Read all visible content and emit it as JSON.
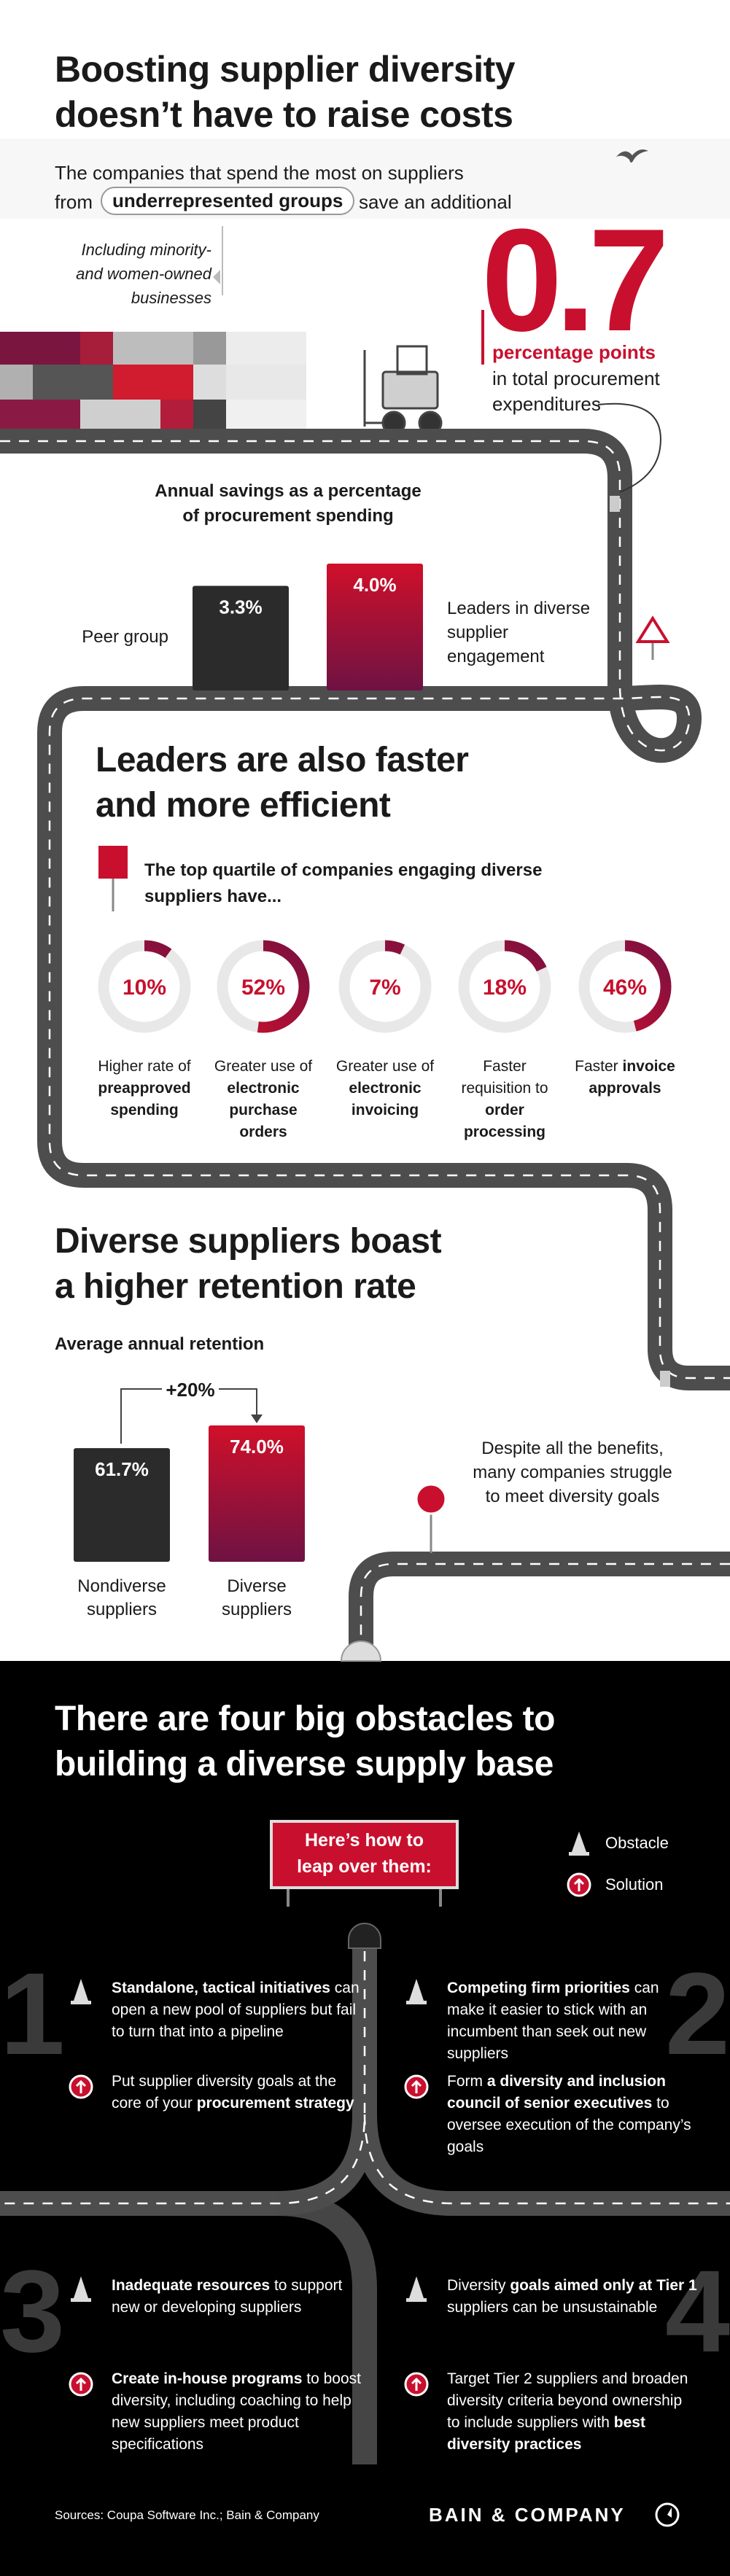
{
  "header": {
    "title": [
      "Boosting supplier diversity",
      "doesn’t have to raise costs"
    ],
    "intro": [
      "The companies that spend the most on suppliers",
      "from",
      "underrepresented groups",
      "save an additional"
    ],
    "note": [
      "Including minority-",
      "and women-owned",
      "businesses"
    ],
    "highlight": {
      "value": "0.7",
      "unit": "percentage points",
      "text": [
        "in total procurement",
        "expenditures"
      ]
    }
  },
  "savings_chart": {
    "type": "bar",
    "title": [
      "Annual savings as a percentage",
      "of procurement spending"
    ],
    "categories": [
      "Peer group",
      "Leaders in diverse supplier engagement"
    ],
    "values": [
      3.3,
      4.0
    ],
    "value_labels": [
      "3.3%",
      "4.0%"
    ],
    "colors": [
      "#2b2b2b",
      "#c8102e"
    ]
  },
  "efficiency": {
    "title": [
      "Leaders are also faster",
      "and more efficient"
    ],
    "subtitle": [
      "The top quartile of companies engaging diverse",
      "suppliers have..."
    ],
    "chart": {
      "type": "donut",
      "ylim": [
        0,
        100
      ],
      "values": [
        10,
        52,
        7,
        18,
        46
      ],
      "value_labels": [
        "10%",
        "52%",
        "7%",
        "18%",
        "46%"
      ],
      "color": "#c8102e",
      "descriptions": [
        [
          {
            "text": "Higher rate of",
            "bold": false
          },
          {
            "text": "preapproved spending",
            "bold": true
          }
        ],
        [
          {
            "text": "Greater use of",
            "bold": false
          },
          {
            "text": "electronic purchase orders",
            "bold": true
          }
        ],
        [
          {
            "text": "Greater use of",
            "bold": false
          },
          {
            "text": "electronic invoicing",
            "bold": true
          }
        ],
        [
          {
            "text": "Faster requisition to",
            "bold": false
          },
          {
            "text": "order processing",
            "bold": true
          }
        ],
        [
          {
            "text": "Faster",
            "bold": false
          },
          {
            "text": "invoice approvals",
            "bold": true
          }
        ]
      ]
    }
  },
  "retention": {
    "title": [
      "Diverse suppliers boast",
      "a higher retention rate"
    ],
    "chart": {
      "type": "bar",
      "title": "Average annual retention",
      "categories": [
        "Nondiverse suppliers",
        "Diverse suppliers"
      ],
      "values": [
        61.7,
        74.0
      ],
      "value_labels": [
        "61.7%",
        "74.0%"
      ],
      "colors": [
        "#2b2b2b",
        "#c8102e"
      ],
      "annotation": "+20%"
    },
    "note": "Despite all the benefits, many companies struggle to meet diversity goals"
  },
  "obstacles": {
    "title": [
      "There are four big obstacles to",
      "building a diverse supply base"
    ],
    "sign": [
      "Here’s how to",
      "leap over them:"
    ],
    "legend": [
      "Obstacle",
      "Solution"
    ],
    "items": [
      {
        "number": 1,
        "obstacle": [
          {
            "text": "Standalone, tactical initiatives",
            "bold": true
          },
          {
            "text": "can open a new pool of suppliers but fail to turn that into a pipeline",
            "bold": false
          }
        ],
        "solution": [
          {
            "text": "Put supplier diversity goals at the core of your",
            "bold": false
          },
          {
            "text": "procurement strategy",
            "bold": true
          }
        ]
      },
      {
        "number": 2,
        "obstacle": [
          {
            "text": "Competing firm priorities",
            "bold": true
          },
          {
            "text": "can make it easier to stick with an incumbent than seek out new suppliers",
            "bold": false
          }
        ],
        "solution": [
          {
            "text": "Form",
            "bold": false
          },
          {
            "text": "a diversity and inclusion council of senior executives",
            "bold": true
          },
          {
            "text": "to oversee execution of the company’s goals",
            "bold": false
          }
        ]
      },
      {
        "number": 3,
        "obstacle": [
          {
            "text": "Inadequate resources",
            "bold": true
          },
          {
            "text": "to support new or developing suppliers",
            "bold": false
          }
        ],
        "solution": [
          {
            "text": "Create in-house programs",
            "bold": true
          },
          {
            "text": "to boost diversity, including coaching to help new suppliers meet product specifications",
            "bold": false
          }
        ]
      },
      {
        "number": 4,
        "obstacle": [
          {
            "text": "Diversity",
            "bold": false
          },
          {
            "text": "goals aimed only at Tier 1",
            "bold": true
          },
          {
            "text": "suppliers can be unsustainable",
            "bold": false
          }
        ],
        "solution": [
          {
            "text": "Target Tier 2 suppliers and broaden diversity criteria beyond ownership to include suppliers with",
            "bold": false
          },
          {
            "text": "best diversity practices",
            "bold": true
          }
        ]
      }
    ]
  },
  "footer": {
    "sources": "Sources: Coupa Software Inc.; Bain & Company",
    "brand": "BAIN & COMPANY"
  }
}
